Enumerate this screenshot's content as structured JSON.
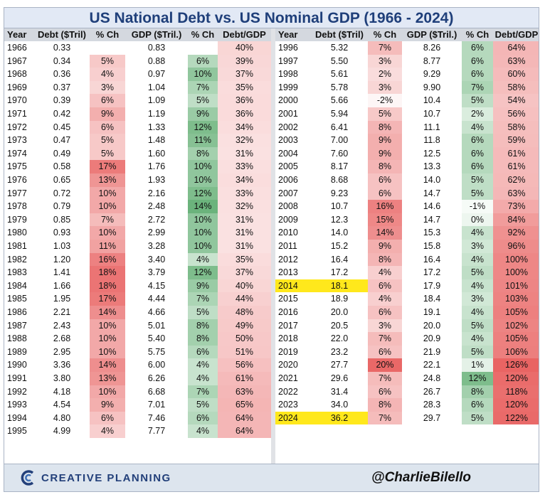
{
  "title": "US National Debt vs. US Nominal GDP (1966 - 2024)",
  "colors": {
    "title_text": "#1f3f7a",
    "header_bg": "#d4d8df",
    "red_scale_max": "#e8605f",
    "green_scale_max": "#5cab6e",
    "highlight": "#ffe81c"
  },
  "footer": {
    "logo_icon": "creative-planning-c-logo",
    "logo_text": "CREATIVE PLANNING",
    "handle": "@CharlieBilello"
  },
  "chart_data": {
    "type": "table",
    "title": "US National Debt vs. US Nominal GDP (1966 - 2024)",
    "columns": [
      "Year",
      "Debt ($Tril)",
      "% Ch",
      "GDP ($Tril.)",
      "% Ch",
      "Debt/GDP"
    ],
    "highlighted_years": [
      "2014",
      "2024"
    ],
    "rows": [
      [
        "1966",
        "0.33",
        "",
        "0.83",
        "",
        "40%"
      ],
      [
        "1967",
        "0.34",
        "5%",
        "0.88",
        "6%",
        "39%"
      ],
      [
        "1968",
        "0.36",
        "4%",
        "0.97",
        "10%",
        "37%"
      ],
      [
        "1969",
        "0.37",
        "3%",
        "1.04",
        "7%",
        "35%"
      ],
      [
        "1970",
        "0.39",
        "6%",
        "1.09",
        "5%",
        "36%"
      ],
      [
        "1971",
        "0.42",
        "9%",
        "1.19",
        "9%",
        "36%"
      ],
      [
        "1972",
        "0.45",
        "6%",
        "1.33",
        "12%",
        "34%"
      ],
      [
        "1973",
        "0.47",
        "5%",
        "1.48",
        "11%",
        "32%"
      ],
      [
        "1974",
        "0.49",
        "5%",
        "1.60",
        "8%",
        "31%"
      ],
      [
        "1975",
        "0.58",
        "17%",
        "1.76",
        "10%",
        "33%"
      ],
      [
        "1976",
        "0.65",
        "13%",
        "1.93",
        "10%",
        "34%"
      ],
      [
        "1977",
        "0.72",
        "10%",
        "2.16",
        "12%",
        "33%"
      ],
      [
        "1978",
        "0.79",
        "10%",
        "2.48",
        "14%",
        "32%"
      ],
      [
        "1979",
        "0.85",
        "7%",
        "2.72",
        "10%",
        "31%"
      ],
      [
        "1980",
        "0.93",
        "10%",
        "2.99",
        "10%",
        "31%"
      ],
      [
        "1981",
        "1.03",
        "11%",
        "3.28",
        "10%",
        "31%"
      ],
      [
        "1982",
        "1.20",
        "16%",
        "3.40",
        "4%",
        "35%"
      ],
      [
        "1983",
        "1.41",
        "18%",
        "3.79",
        "12%",
        "37%"
      ],
      [
        "1984",
        "1.66",
        "18%",
        "4.15",
        "9%",
        "40%"
      ],
      [
        "1985",
        "1.95",
        "17%",
        "4.44",
        "7%",
        "44%"
      ],
      [
        "1986",
        "2.21",
        "14%",
        "4.66",
        "5%",
        "48%"
      ],
      [
        "1987",
        "2.43",
        "10%",
        "5.01",
        "8%",
        "49%"
      ],
      [
        "1988",
        "2.68",
        "10%",
        "5.40",
        "8%",
        "50%"
      ],
      [
        "1989",
        "2.95",
        "10%",
        "5.75",
        "6%",
        "51%"
      ],
      [
        "1990",
        "3.36",
        "14%",
        "6.00",
        "4%",
        "56%"
      ],
      [
        "1991",
        "3.80",
        "13%",
        "6.26",
        "4%",
        "61%"
      ],
      [
        "1992",
        "4.18",
        "10%",
        "6.68",
        "7%",
        "63%"
      ],
      [
        "1993",
        "4.54",
        "9%",
        "7.01",
        "5%",
        "65%"
      ],
      [
        "1994",
        "4.80",
        "6%",
        "7.46",
        "6%",
        "64%"
      ],
      [
        "1995",
        "4.99",
        "4%",
        "7.77",
        "4%",
        "64%"
      ],
      [
        "1996",
        "5.32",
        "7%",
        "8.26",
        "6%",
        "64%"
      ],
      [
        "1997",
        "5.50",
        "3%",
        "8.77",
        "6%",
        "63%"
      ],
      [
        "1998",
        "5.61",
        "2%",
        "9.29",
        "6%",
        "60%"
      ],
      [
        "1999",
        "5.78",
        "3%",
        "9.90",
        "7%",
        "58%"
      ],
      [
        "2000",
        "5.66",
        "-2%",
        "10.4",
        "5%",
        "54%"
      ],
      [
        "2001",
        "5.94",
        "5%",
        "10.7",
        "2%",
        "56%"
      ],
      [
        "2002",
        "6.41",
        "8%",
        "11.1",
        "4%",
        "58%"
      ],
      [
        "2003",
        "7.00",
        "9%",
        "11.8",
        "6%",
        "59%"
      ],
      [
        "2004",
        "7.60",
        "9%",
        "12.5",
        "6%",
        "61%"
      ],
      [
        "2005",
        "8.17",
        "8%",
        "13.3",
        "6%",
        "61%"
      ],
      [
        "2006",
        "8.68",
        "6%",
        "14.0",
        "5%",
        "62%"
      ],
      [
        "2007",
        "9.23",
        "6%",
        "14.7",
        "5%",
        "63%"
      ],
      [
        "2008",
        "10.7",
        "16%",
        "14.6",
        "-1%",
        "73%"
      ],
      [
        "2009",
        "12.3",
        "15%",
        "14.7",
        "0%",
        "84%"
      ],
      [
        "2010",
        "14.0",
        "14%",
        "15.3",
        "4%",
        "92%"
      ],
      [
        "2011",
        "15.2",
        "9%",
        "15.8",
        "3%",
        "96%"
      ],
      [
        "2012",
        "16.4",
        "8%",
        "16.4",
        "4%",
        "100%"
      ],
      [
        "2013",
        "17.2",
        "4%",
        "17.2",
        "5%",
        "100%"
      ],
      [
        "2014",
        "18.1",
        "6%",
        "17.9",
        "4%",
        "101%"
      ],
      [
        "2015",
        "18.9",
        "4%",
        "18.4",
        "3%",
        "103%"
      ],
      [
        "2016",
        "20.0",
        "6%",
        "19.1",
        "4%",
        "105%"
      ],
      [
        "2017",
        "20.5",
        "3%",
        "20.0",
        "5%",
        "102%"
      ],
      [
        "2018",
        "22.0",
        "7%",
        "20.9",
        "4%",
        "105%"
      ],
      [
        "2019",
        "23.2",
        "6%",
        "21.9",
        "5%",
        "106%"
      ],
      [
        "2020",
        "27.7",
        "20%",
        "22.1",
        "1%",
        "126%"
      ],
      [
        "2021",
        "29.6",
        "7%",
        "24.8",
        "12%",
        "120%"
      ],
      [
        "2022",
        "31.4",
        "6%",
        "26.7",
        "8%",
        "118%"
      ],
      [
        "2023",
        "34.0",
        "8%",
        "28.3",
        "6%",
        "120%"
      ],
      [
        "2024",
        "36.2",
        "7%",
        "29.7",
        "5%",
        "122%"
      ]
    ]
  }
}
